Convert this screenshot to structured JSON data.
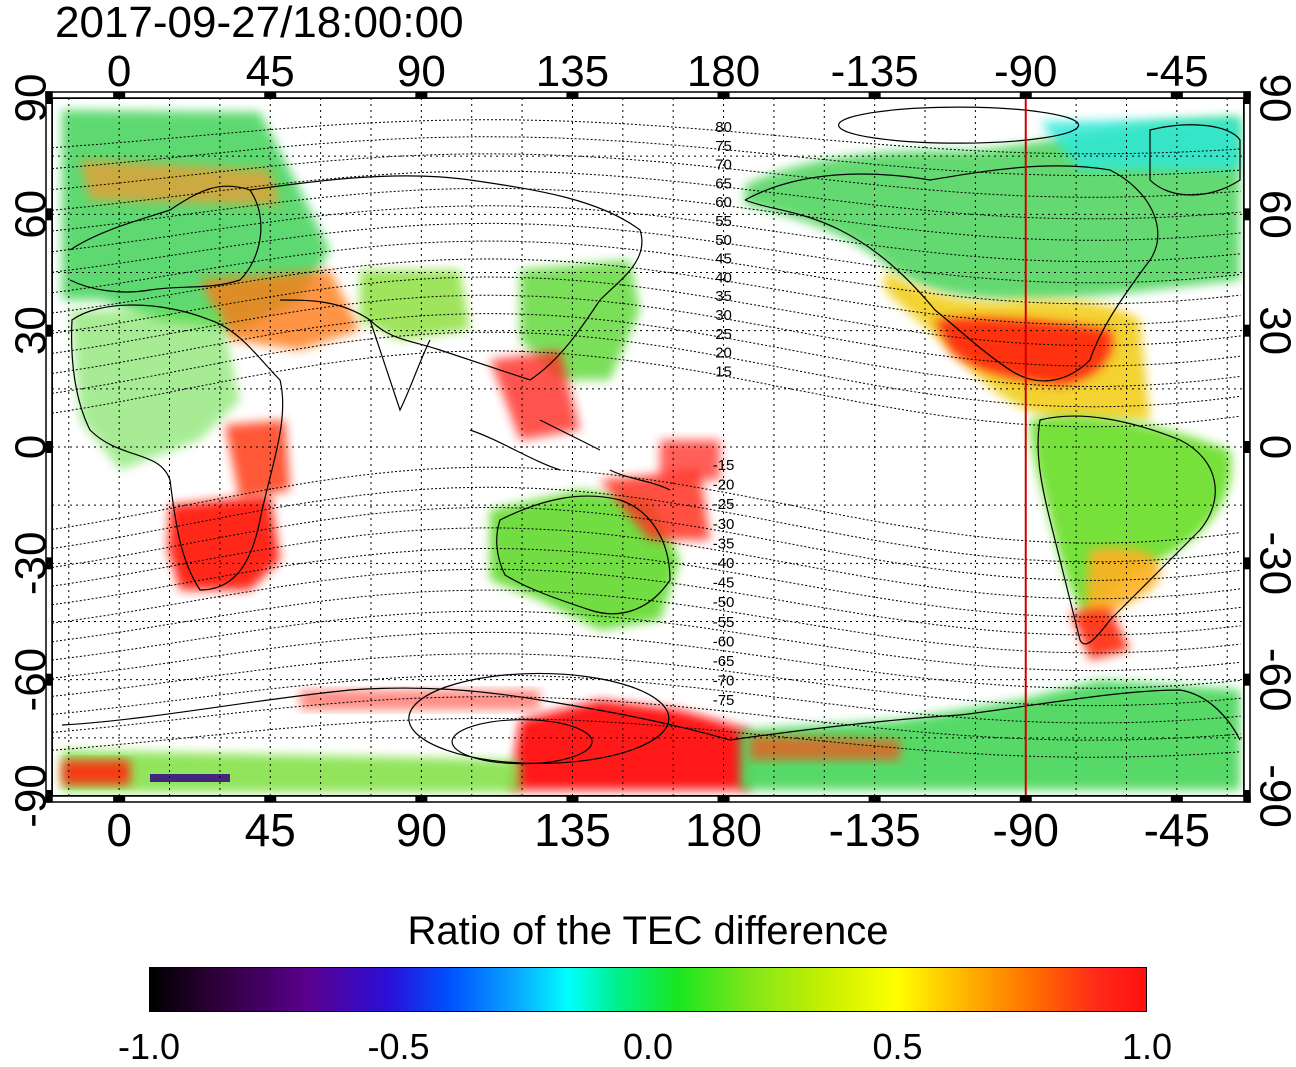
{
  "title": "2017-09-27/18:00:00",
  "lon_ticks": [
    0,
    45,
    90,
    135,
    180,
    -135,
    -90,
    -45
  ],
  "lat_ticks": [
    90,
    60,
    30,
    0,
    -30,
    -60,
    -90
  ],
  "lon_tick_labels": [
    "0",
    "45",
    "90",
    "135",
    "180",
    "-135",
    "-90",
    "-45"
  ],
  "lat_tick_labels_left": [
    "90",
    "60",
    "30",
    "0",
    "-30",
    "-60",
    "-90"
  ],
  "lat_tick_labels_right": [
    "90",
    "60",
    "30",
    "0",
    "-30",
    "-60",
    "-90"
  ],
  "map": {
    "lon_range": [
      -20,
      335
    ],
    "lat_range": [
      -90,
      90
    ],
    "grid": "dotted every 15 degrees",
    "marked_meridian": {
      "lon": -90,
      "color": "#d00000"
    },
    "magnetic_latitude_labels_north": [
      "80",
      "75",
      "70",
      "65",
      "60",
      "55",
      "50",
      "45",
      "40",
      "35",
      "30",
      "25",
      "20",
      "15"
    ],
    "magnetic_latitude_labels_south": [
      "-15",
      "-20",
      "-25",
      "-30",
      "-35",
      "-40",
      "-45",
      "-50",
      "-55",
      "-60",
      "-65",
      "-70",
      "-75"
    ]
  },
  "colorbar": {
    "title": "Ratio of the TEC difference",
    "min": -1.0,
    "max": 1.0,
    "tick_labels": [
      "-1.0",
      "-0.5",
      "0.0",
      "0.5",
      "1.0"
    ],
    "stops": [
      "#000000",
      "#5a0090",
      "#0050ff",
      "#00ffff",
      "#19e620",
      "#ffff00",
      "#ff6a00",
      "#ff1010"
    ]
  },
  "regions": [
    {
      "name": "north-america-mid-latitude",
      "value": 0.9,
      "color": "#ff2a10"
    },
    {
      "name": "north-america-high-latitude",
      "value": 0.1,
      "color": "#5cd850"
    },
    {
      "name": "south-america",
      "value": 0.2,
      "color": "#6fe030"
    },
    {
      "name": "europe",
      "value": 0.15,
      "color": "#56d86a"
    },
    {
      "name": "southern-africa",
      "value": 1.0,
      "color": "#ff1a10"
    },
    {
      "name": "australia",
      "value": 0.2,
      "color": "#6adc38"
    },
    {
      "name": "antarctica-pacific-sector",
      "value": 1.0,
      "color": "#ff1010"
    },
    {
      "name": "antarctica-atlantic-sector",
      "value": 0.15,
      "color": "#4fd860"
    }
  ]
}
